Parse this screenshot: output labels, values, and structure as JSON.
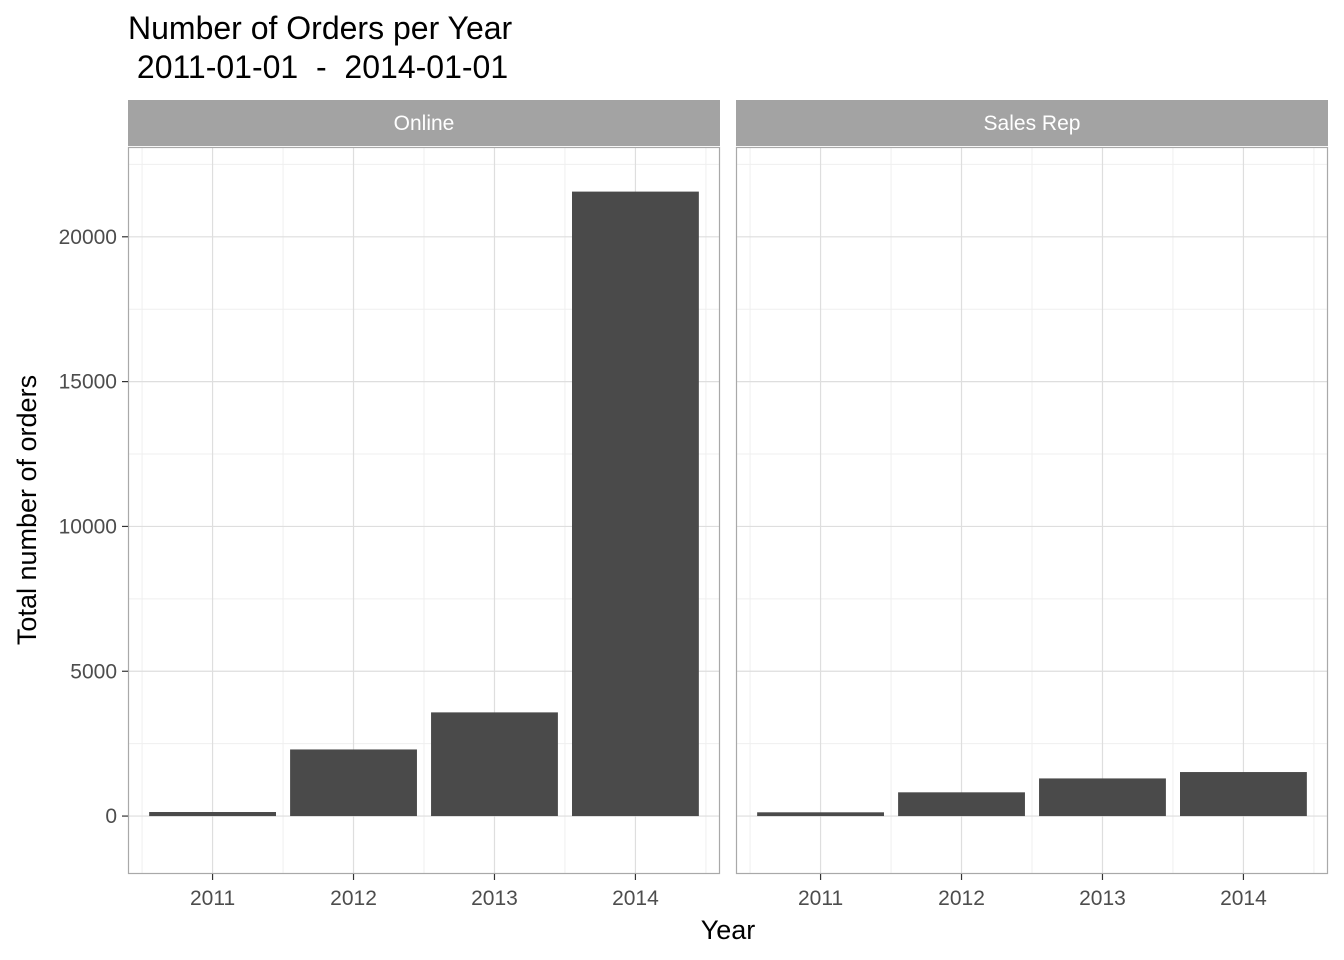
{
  "chart_data": {
    "type": "bar",
    "title": "Number of Orders per Year",
    "subtitle": " 2011-01-01  -  2014-01-01",
    "xlabel": "Year",
    "ylabel": "Total number of orders",
    "ylim": [
      -2000,
      23100
    ],
    "yticks": [
      0,
      5000,
      10000,
      15000,
      20000
    ],
    "grid": true,
    "categories": [
      "2011",
      "2012",
      "2013",
      "2014"
    ],
    "panels": [
      {
        "name": "Online",
        "values": [
          140,
          2300,
          3580,
          21560
        ]
      },
      {
        "name": "Sales Rep",
        "values": [
          130,
          820,
          1300,
          1520
        ]
      }
    ],
    "colors": {
      "bar": "#4a4a4a",
      "strip": "#a3a3a3",
      "grid_major": "#dedede",
      "grid_minor": "#efefef",
      "panel_border": "#a9a9a9"
    }
  }
}
